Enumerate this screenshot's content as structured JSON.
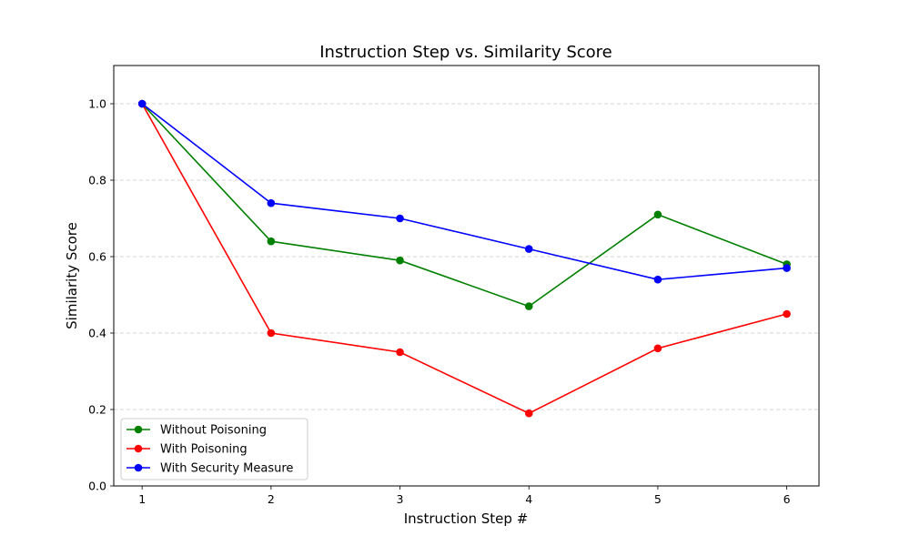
{
  "chart_data": {
    "type": "line",
    "title": "Instruction Step vs. Similarity Score",
    "xlabel": "Instruction Step #",
    "ylabel": "Similarity Score",
    "x": [
      1,
      2,
      3,
      4,
      5,
      6
    ],
    "xlim": [
      0.78,
      6.25
    ],
    "ylim": [
      0,
      1.1
    ],
    "yticks": [
      0.0,
      0.2,
      0.4,
      0.6,
      0.8,
      1.0
    ],
    "ytick_labels": [
      "0.0",
      "0.2",
      "0.4",
      "0.6",
      "0.8",
      "1.0"
    ],
    "xtick_labels": [
      "1",
      "2",
      "3",
      "4",
      "5",
      "6"
    ],
    "grid": "y-dashed",
    "legend_position": "lower-left",
    "series": [
      {
        "name": "Without Poisoning",
        "color": "#008000",
        "values": [
          1.0,
          0.64,
          0.59,
          0.47,
          0.71,
          0.58
        ]
      },
      {
        "name": "With Poisoning",
        "color": "#ff0000",
        "values": [
          1.0,
          0.4,
          0.35,
          0.19,
          0.36,
          0.45
        ]
      },
      {
        "name": "With Security Measure",
        "color": "#0000ff",
        "values": [
          1.0,
          0.74,
          0.7,
          0.62,
          0.54,
          0.57
        ]
      }
    ]
  }
}
